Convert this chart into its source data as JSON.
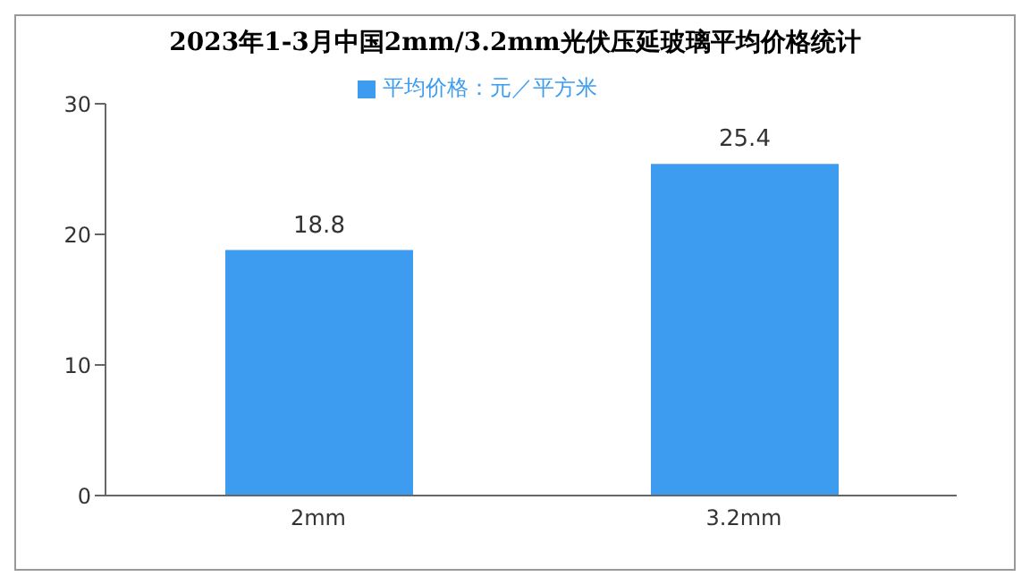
{
  "chart_data": {
    "type": "bar",
    "title": "2023年1-3月中国2mm/3.2mm光伏压延玻璃平均价格统计",
    "categories": [
      "2mm",
      "3.2mm"
    ],
    "series": [
      {
        "name": "平均价格：元／平方米",
        "color": "#3d9cf0",
        "values": [
          18.8,
          25.4
        ]
      }
    ],
    "ylim": [
      0,
      30
    ],
    "yticks": [
      0,
      10,
      20,
      30
    ],
    "grid": false,
    "legend": "top",
    "data_labels": true
  }
}
